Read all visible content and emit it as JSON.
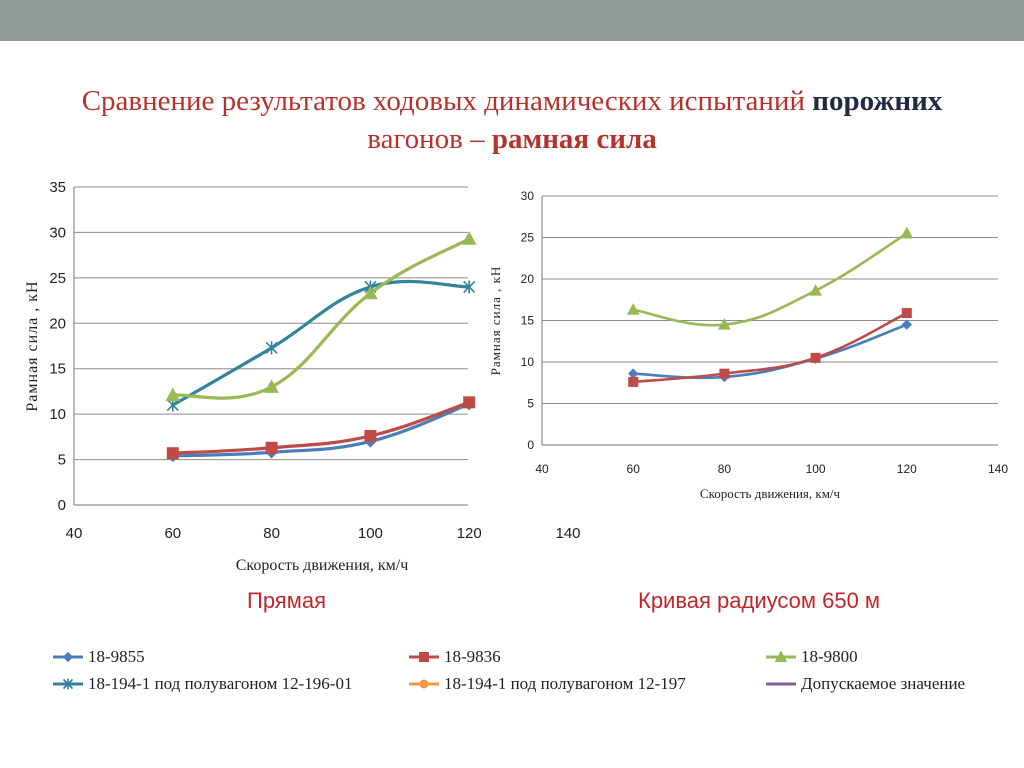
{
  "title": {
    "line1_normal": "Сравнение результатов ходовых динамических испытаний ",
    "line1_bold": "порожних",
    "line2_normal": "вагонов – ",
    "line2_bold": "рамная сила"
  },
  "captions": {
    "left": "Прямая",
    "right": "Кривая радиусом 650 м"
  },
  "colors": {
    "18-9855": "#4a7ebb",
    "18-9836": "#be4b48",
    "18-9800": "#98b954",
    "18-194-1-12-196-01": "#31849b",
    "18-194-1-12-197": "#f79646",
    "allowed": "#7f5f9f"
  },
  "legend": [
    {
      "key": "18-9855",
      "label": "18-9855",
      "marker": "diamond",
      "color": "#4a7ebb"
    },
    {
      "key": "18-9836",
      "label": "18-9836",
      "marker": "square",
      "color": "#be4b48"
    },
    {
      "key": "18-9800",
      "label": "18-9800",
      "marker": "triangle",
      "color": "#98b954"
    },
    {
      "key": "18-194-1-12-196-01",
      "label": "18-194-1 под полувагоном 12-196-01",
      "marker": "star",
      "color": "#31849b"
    },
    {
      "key": "18-194-1-12-197",
      "label": "18-194-1 под полувагоном 12-197",
      "marker": "circle",
      "color": "#f79646"
    },
    {
      "key": "allowed",
      "label": "Допускаемое значение",
      "marker": "none",
      "color": "#7f5f9f"
    }
  ],
  "chart_data": [
    {
      "type": "line",
      "xlabel": "Скорость движения, км/ч",
      "ylabel": "Рамная сила , кН",
      "xlim": [
        40,
        140
      ],
      "ylim": [
        0,
        35
      ],
      "xticks": [
        40,
        60,
        80,
        100,
        120,
        140
      ],
      "yticks": [
        0,
        5,
        10,
        15,
        20,
        25,
        30,
        35
      ],
      "grid": true,
      "series": [
        {
          "name": "18-194-1 под полувагоном 12-196-01",
          "x": [
            60,
            80,
            100,
            120
          ],
          "values": [
            11.0,
            17.3,
            24.0,
            24.0
          ]
        },
        {
          "name": "18-9800",
          "x": [
            60,
            80,
            100,
            120
          ],
          "values": [
            12.1,
            13.0,
            23.3,
            29.3
          ]
        },
        {
          "name": "18-9855",
          "x": [
            60,
            80,
            100,
            120
          ],
          "values": [
            5.4,
            5.8,
            7.0,
            11.1
          ]
        },
        {
          "name": "18-9836",
          "x": [
            60,
            80,
            100,
            120
          ],
          "values": [
            5.7,
            6.3,
            7.6,
            11.3
          ]
        }
      ]
    },
    {
      "type": "line",
      "xlabel": "Скорость движения, км/ч",
      "ylabel": "Рамная сила , кН",
      "xlim": [
        40,
        140
      ],
      "ylim": [
        0,
        30
      ],
      "xticks": [
        40,
        60,
        80,
        100,
        120,
        140
      ],
      "yticks": [
        0,
        5,
        10,
        15,
        20,
        25,
        30
      ],
      "grid": true,
      "series": [
        {
          "name": "18-9800",
          "x": [
            60,
            80,
            100,
            120
          ],
          "values": [
            16.3,
            14.5,
            18.6,
            25.5
          ]
        },
        {
          "name": "18-9855",
          "x": [
            60,
            80,
            100,
            120
          ],
          "values": [
            8.6,
            8.2,
            10.4,
            14.5
          ]
        },
        {
          "name": "18-9836",
          "x": [
            60,
            80,
            100,
            120
          ],
          "values": [
            7.6,
            8.6,
            10.5,
            15.9
          ]
        }
      ]
    }
  ]
}
